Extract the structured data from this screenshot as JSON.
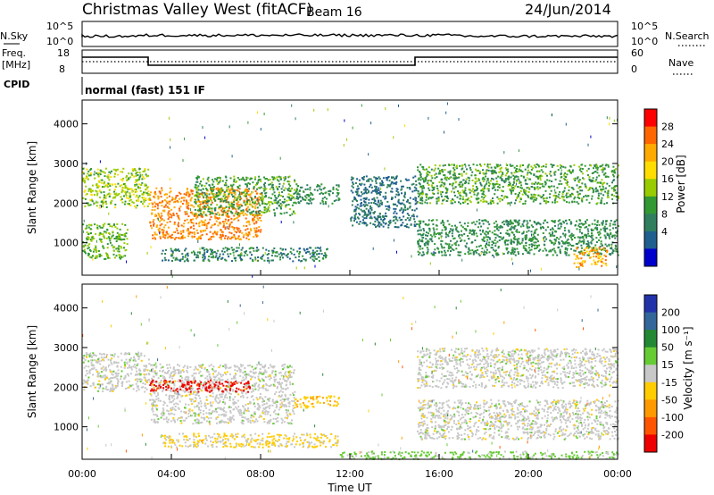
{
  "header": {
    "title": "Christmas Valley West (fitACF)",
    "beam": "Beam 16",
    "date": "24/Jun/2014"
  },
  "mini_panels": {
    "nsky_label": "N.Sky",
    "nsky_ticks": [
      "10^5",
      "10^0"
    ],
    "nsearch_label": "N.Search",
    "nsearch_ticks": [
      "10^5",
      "10^0"
    ],
    "freq_label_top": "Freq.",
    "freq_label_bot": "[MHz]",
    "freq_ticks": [
      "18",
      "8"
    ],
    "nave_label": "Nave",
    "nave_ticks": [
      "60",
      "0"
    ],
    "cpid_label": "CPID",
    "cpid_value": "normal (fast) 151 IF"
  },
  "colorbars": {
    "power": {
      "label": "Power [dB]",
      "ticks": [
        "28",
        "24",
        "20",
        "16",
        "12",
        "8",
        "4"
      ],
      "colors": [
        "#ff0000",
        "#ff6600",
        "#ffaa00",
        "#ffdd00",
        "#99cc00",
        "#339933",
        "#2f7f5f",
        "#1f5f8f",
        "#0000cc"
      ]
    },
    "velocity": {
      "label": "Velocity [m s⁻¹]",
      "ticks": [
        "200",
        "100",
        "50",
        "15",
        "-15",
        "-50",
        "-100",
        "-200"
      ],
      "colors": [
        "#2233aa",
        "#336699",
        "#228833",
        "#66cc33",
        "#c8c8c8",
        "#ffcc00",
        "#ff9900",
        "#ff5500",
        "#ee0000"
      ]
    }
  },
  "axes": {
    "ylabel": "Slant Range [km]",
    "xlabel": "Time UT",
    "y_ticks": [
      "4000",
      "3000",
      "2000",
      "1000"
    ],
    "x_ticks": [
      "00:00",
      "04:00",
      "08:00",
      "12:00",
      "16:00",
      "20:00",
      "00:00"
    ]
  },
  "chart_data": [
    {
      "type": "heatmap",
      "name": "Power",
      "x_range_hours": [
        0,
        24
      ],
      "y_range_km": [
        180,
        4600
      ],
      "z_units": "dB",
      "z_range": [
        0,
        32
      ],
      "features": [
        {
          "t": [
            0.0,
            3.0
          ],
          "range_km": [
            1900,
            2900
          ],
          "z": 16
        },
        {
          "t": [
            0.0,
            2.0
          ],
          "range_km": [
            600,
            1500
          ],
          "z": 14
        },
        {
          "t": [
            3.0,
            8.0
          ],
          "range_km": [
            1100,
            2400
          ],
          "z": 26
        },
        {
          "t": [
            5.0,
            9.5
          ],
          "range_km": [
            1700,
            2700
          ],
          "z": 12
        },
        {
          "t": [
            9.5,
            11.5
          ],
          "range_km": [
            2000,
            2500
          ],
          "z": 10
        },
        {
          "t": [
            3.5,
            11.0
          ],
          "range_km": [
            550,
            900
          ],
          "z": 8
        },
        {
          "t": [
            12.0,
            15.0
          ],
          "range_km": [
            1400,
            2700
          ],
          "z": 6
        },
        {
          "t": [
            15.0,
            24.0
          ],
          "range_km": [
            2000,
            3000
          ],
          "z": 12
        },
        {
          "t": [
            15.0,
            24.0
          ],
          "range_km": [
            700,
            1600
          ],
          "z": 10
        },
        {
          "t": [
            22.0,
            23.5
          ],
          "range_km": [
            400,
            900
          ],
          "z": 24
        }
      ]
    },
    {
      "type": "heatmap",
      "name": "Velocity",
      "x_range_hours": [
        0,
        24
      ],
      "y_range_km": [
        180,
        4600
      ],
      "z_units": "m s^-1",
      "z_range": [
        -200,
        200
      ],
      "features": [
        {
          "t": [
            0.0,
            3.0
          ],
          "range_km": [
            1900,
            2900
          ],
          "z": 0
        },
        {
          "t": [
            3.0,
            9.5
          ],
          "range_km": [
            1100,
            2600
          ],
          "z": 0
        },
        {
          "t": [
            3.0,
            7.5
          ],
          "range_km": [
            1900,
            2200
          ],
          "z": -200
        },
        {
          "t": [
            9.5,
            11.5
          ],
          "range_km": [
            1500,
            1800
          ],
          "z": -60
        },
        {
          "t": [
            3.5,
            11.5
          ],
          "range_km": [
            500,
            850
          ],
          "z": -30
        },
        {
          "t": [
            15.0,
            24.0
          ],
          "range_km": [
            2000,
            3000
          ],
          "z": 0
        },
        {
          "t": [
            15.0,
            24.0
          ],
          "range_km": [
            700,
            1700
          ],
          "z": 0
        },
        {
          "t": [
            11.5,
            24.0
          ],
          "range_km": [
            200,
            400
          ],
          "z": 40
        }
      ]
    }
  ]
}
